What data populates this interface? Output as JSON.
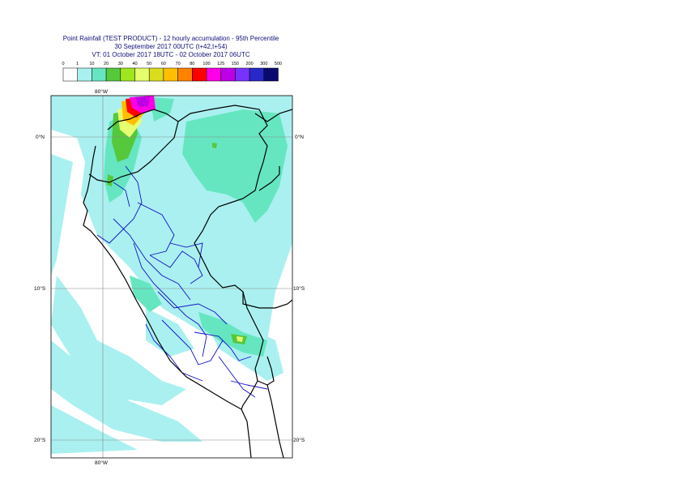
{
  "header": {
    "title_line1": "Point Rainfall (TEST PRODUCT) - 12 hourly accumulation - 95th Percentile",
    "title_line2": "30 September 2017 00UTC (t+42,t+54)",
    "title_line3": "VT: 01 October 2017 18UTC - 02 October 2017 06UTC"
  },
  "legend": {
    "thresholds": [
      "0",
      "1",
      "10",
      "20",
      "30",
      "40",
      "50",
      "60",
      "70",
      "80",
      "100",
      "125",
      "150",
      "200",
      "300",
      "500"
    ],
    "colors": [
      "#ffffff",
      "#aaf0f0",
      "#66e6c0",
      "#55c83c",
      "#a0e61e",
      "#e6ff6e",
      "#dcdc1e",
      "#ffbe00",
      "#ff8200",
      "#ff0000",
      "#ff00e6",
      "#be00e6",
      "#7832ff",
      "#2828c8",
      "#0a0a6e"
    ]
  },
  "map": {
    "top_lon_label": "80°W",
    "bottom_lon_label": "80°W",
    "lat_labels_left": [
      "0°N",
      "10°S",
      "20°S"
    ],
    "lat_labels_right": [
      "0°N",
      "10°S",
      "20°S"
    ],
    "colors": {
      "rain_light": "#aaf0f0",
      "rain_mid": "#66e6c0",
      "rain_green": "#55c83c",
      "rain_yellow": "#e6ff6e",
      "rain_orange": "#ffbe00",
      "rain_red": "#ff0000",
      "rain_magenta": "#ff00e6",
      "rain_purple": "#be00e6",
      "country_border": "#000000",
      "region_border": "#1010c8",
      "grid": "#888888"
    }
  }
}
